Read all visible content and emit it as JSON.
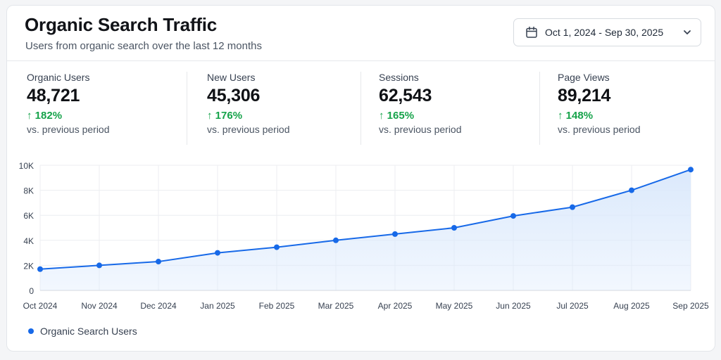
{
  "header": {
    "title": "Organic Search Traffic",
    "subtitle": "Users from organic search over the last 12 months",
    "date_range": "Oct 1, 2024 - Sep 30, 2025"
  },
  "icons": {
    "calendar": "calendar-icon",
    "dropdown": "chevron-down-icon",
    "delta": "arrow-up-icon"
  },
  "stats": [
    {
      "label": "Organic Users",
      "value": "48,721",
      "delta": "182%",
      "comparison": "vs. previous period"
    },
    {
      "label": "New Users",
      "value": "45,306",
      "delta": "176%",
      "comparison": "vs. previous period"
    },
    {
      "label": "Sessions",
      "value": "62,543",
      "delta": "165%",
      "comparison": "vs. previous period"
    },
    {
      "label": "Page Views",
      "value": "89,214",
      "delta": "148%",
      "comparison": "vs. previous period"
    }
  ],
  "colors": {
    "series": "#1769e8",
    "fill": "#dbe9fc",
    "positive": "#16a34a"
  },
  "chart_data": {
    "type": "area",
    "categories": [
      "Oct 2024",
      "Nov 2024",
      "Dec 2024",
      "Jan 2025",
      "Feb 2025",
      "Mar 2025",
      "Apr 2025",
      "May 2025",
      "Jun 2025",
      "Jul 2025",
      "Aug 2025",
      "Sep 2025"
    ],
    "series": [
      {
        "name": "Organic Search Users",
        "values": [
          1700,
          2000,
          2300,
          3000,
          3450,
          4000,
          4500,
          5000,
          5950,
          6650,
          8000,
          9650
        ]
      }
    ],
    "ylim": [
      0,
      10000
    ],
    "yticks": [
      "0",
      "2K",
      "4K",
      "6K",
      "8K",
      "10K"
    ],
    "ytick_values": [
      0,
      2000,
      4000,
      6000,
      8000,
      10000
    ],
    "grid": true,
    "legend": "bottom-left"
  }
}
